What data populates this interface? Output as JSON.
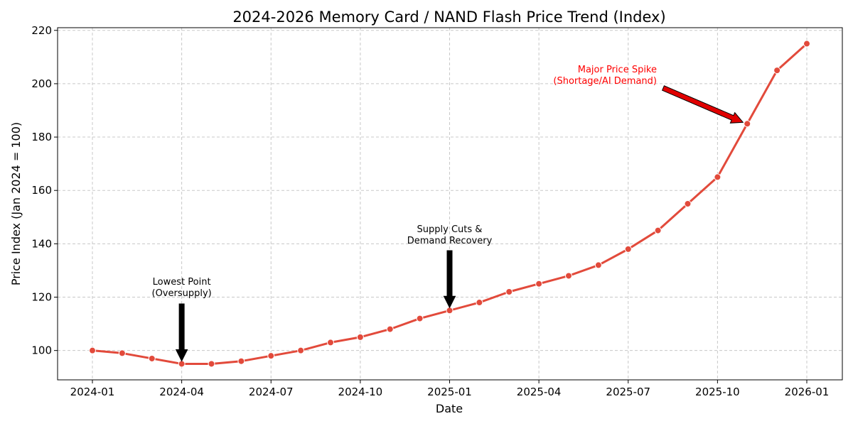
{
  "chart_data": {
    "type": "line",
    "title": "2024-2026 Memory Card / NAND Flash Price Trend (Index)",
    "xlabel": "Date",
    "ylabel": "Price Index (Jan 2024 = 100)",
    "x": [
      "2024-01",
      "2024-02",
      "2024-03",
      "2024-04",
      "2024-05",
      "2024-06",
      "2024-07",
      "2024-08",
      "2024-09",
      "2024-10",
      "2024-11",
      "2024-12",
      "2025-01",
      "2025-02",
      "2025-03",
      "2025-04",
      "2025-05",
      "2025-06",
      "2025-07",
      "2025-08",
      "2025-09",
      "2025-10",
      "2025-11",
      "2025-12",
      "2026-01"
    ],
    "series": [
      {
        "name": "Price Index",
        "values": [
          100,
          99,
          97,
          95,
          95,
          96,
          98,
          100,
          103,
          105,
          108,
          112,
          115,
          118,
          122,
          125,
          128,
          132,
          138,
          145,
          155,
          165,
          185,
          205,
          215
        ]
      }
    ],
    "x_ticks": [
      "2024-01",
      "2024-04",
      "2024-07",
      "2024-10",
      "2025-01",
      "2025-04",
      "2025-07",
      "2025-10",
      "2026-01"
    ],
    "y_ticks": [
      100,
      120,
      140,
      160,
      180,
      200,
      220
    ],
    "ylim": [
      89,
      221
    ],
    "grid": true,
    "line_color": "#e24a3b",
    "annotations": [
      {
        "lines": [
          "Lowest Point",
          "(Oversupply)"
        ],
        "point": "2024-04",
        "value": 95,
        "color": "#000000"
      },
      {
        "lines": [
          "Supply Cuts &",
          "Demand Recovery"
        ],
        "point": "2025-01",
        "value": 115,
        "color": "#000000"
      },
      {
        "lines": [
          "Major Price Spike",
          "(Shortage/AI Demand)"
        ],
        "point": "2025-11",
        "value": 185,
        "color": "#ff0000"
      }
    ]
  }
}
